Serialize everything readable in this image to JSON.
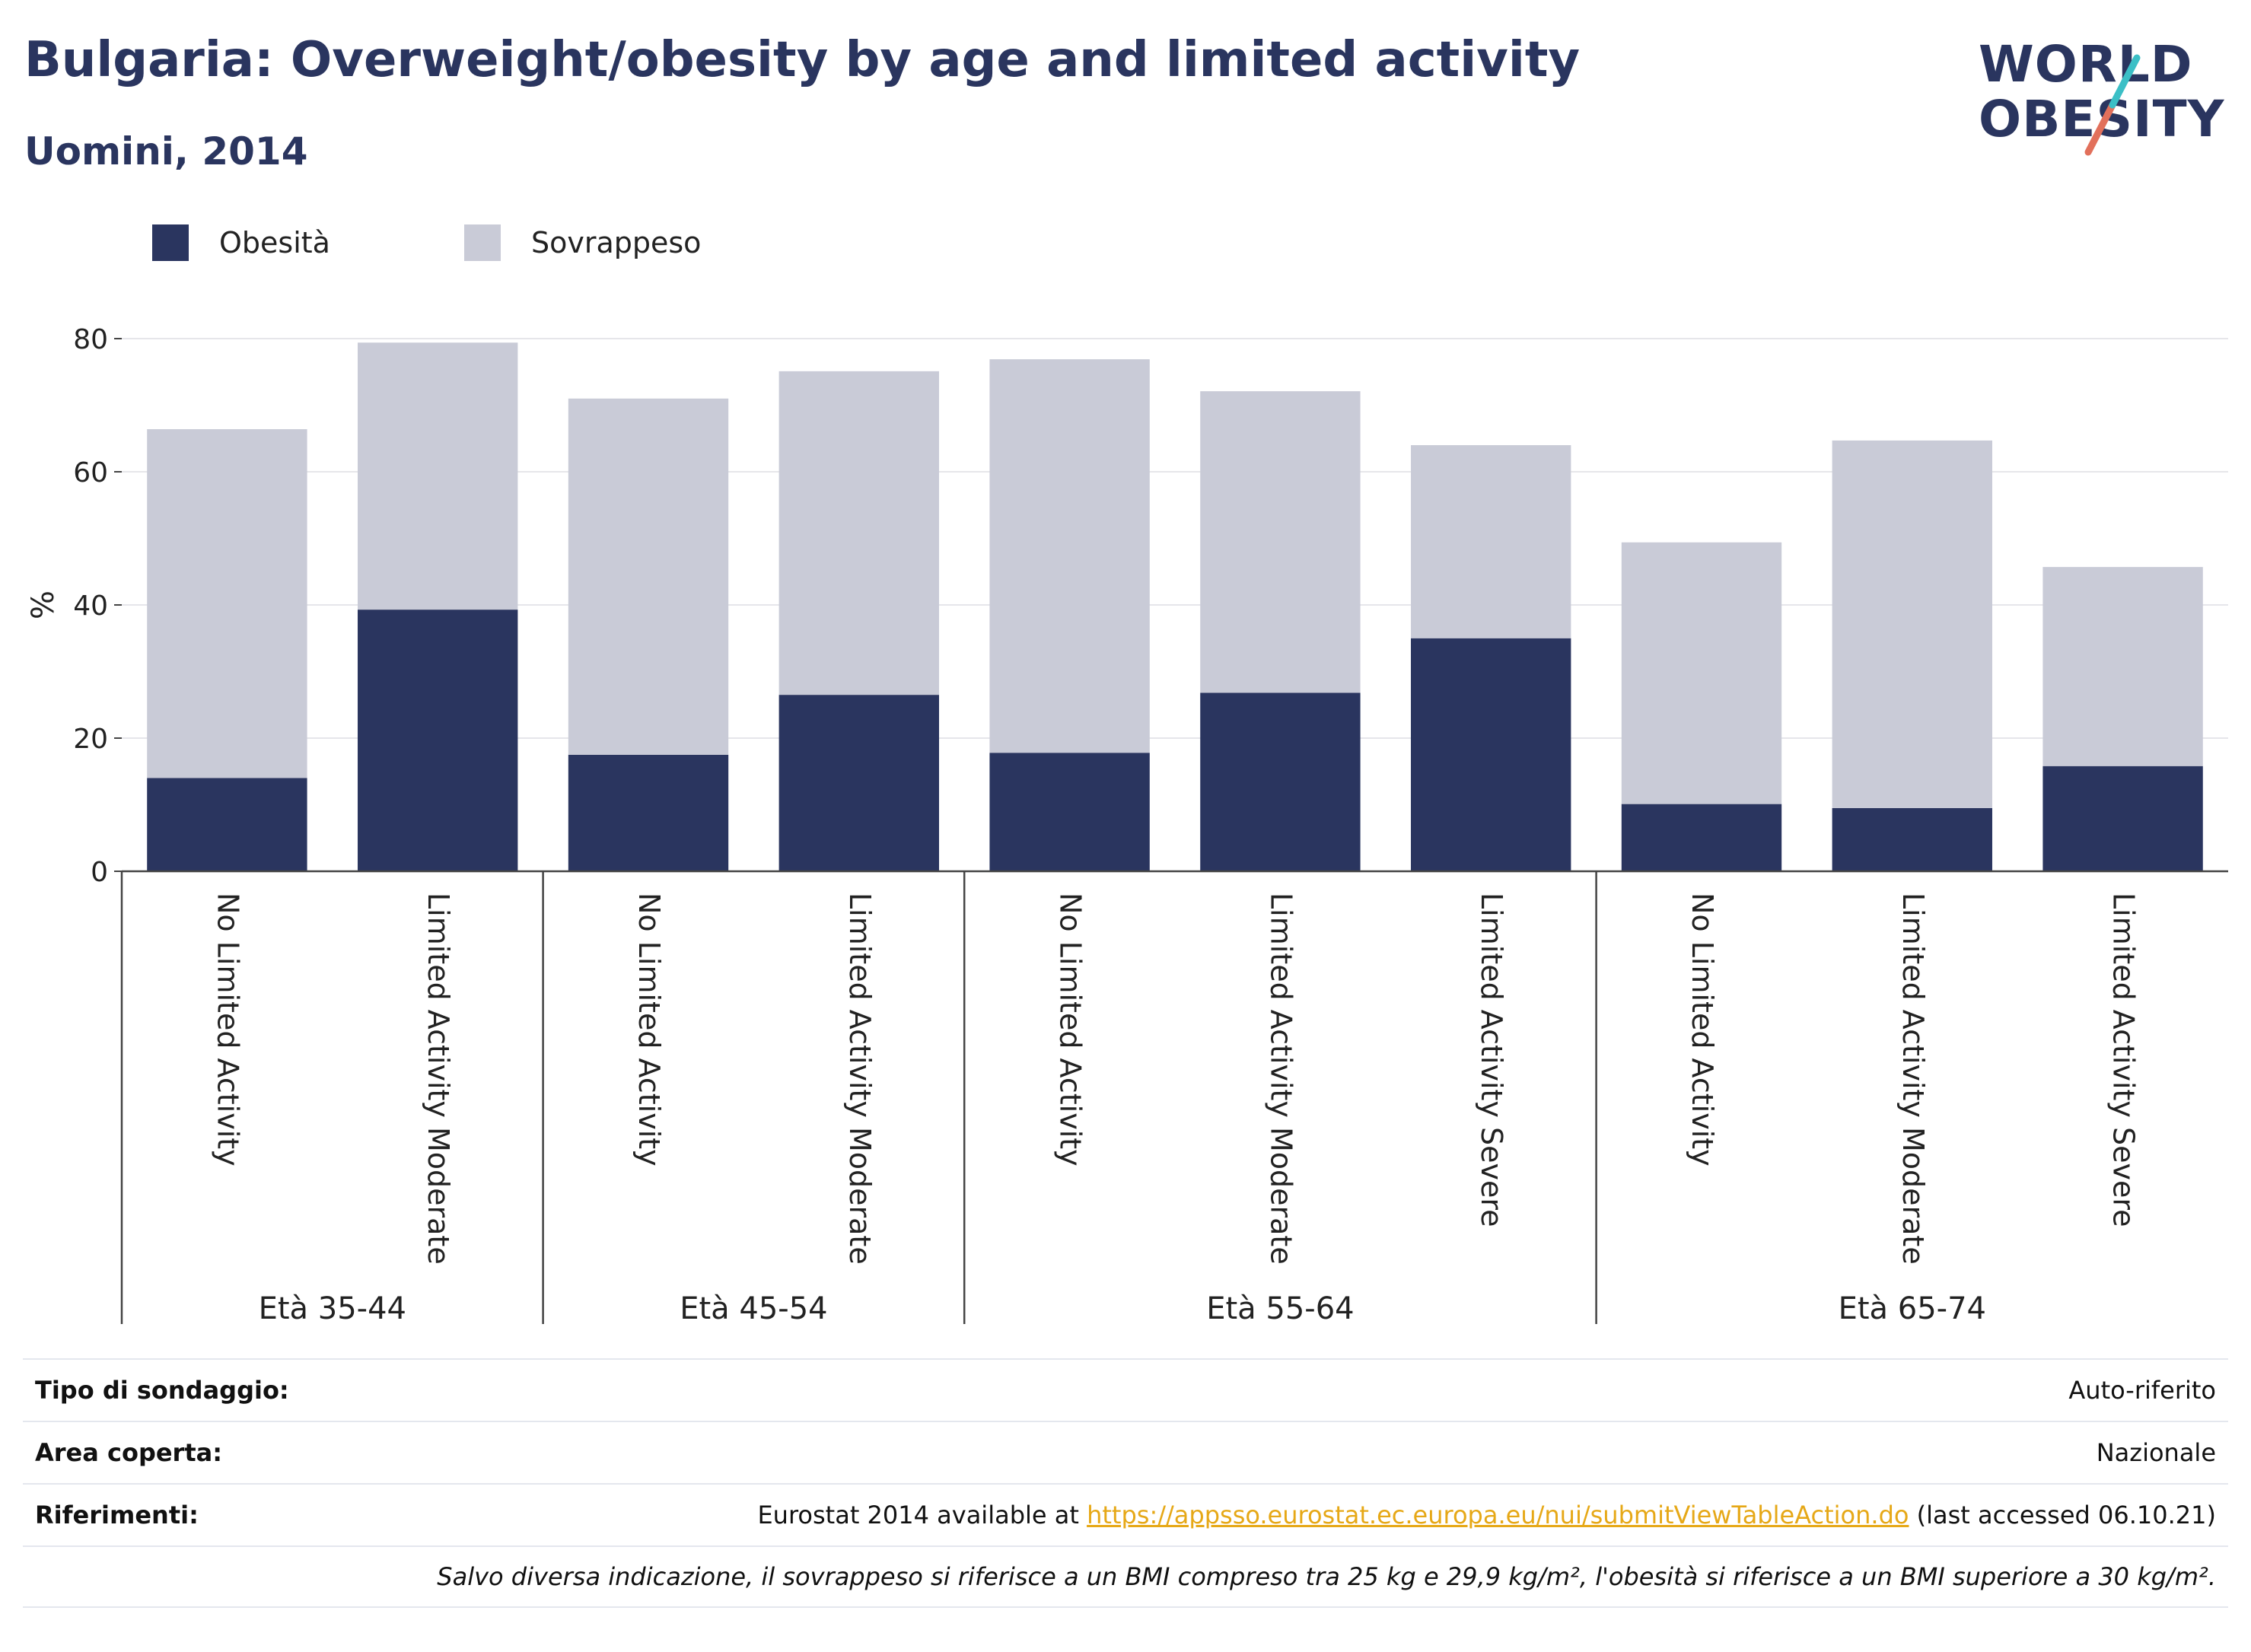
{
  "header": {
    "title": "Bulgaria: Overweight/obesity by age and limited activity",
    "subtitle": "Uomini, 2014"
  },
  "logo": {
    "line1": "WORLD",
    "line2": "OBESITY",
    "slash_colors": [
      "#3bbfc6",
      "#e2705b"
    ]
  },
  "legend": {
    "items": [
      {
        "label": "Obesità",
        "color": "#2a355f"
      },
      {
        "label": "Sovrappeso",
        "color": "#c9cbd7"
      }
    ]
  },
  "chart_data": {
    "type": "bar",
    "stacked": true,
    "ylabel": "%",
    "ylim": [
      0,
      80
    ],
    "yticks": [
      0,
      20,
      40,
      60,
      80
    ],
    "grid": true,
    "legend_position": "top-left",
    "categories": [
      "No Limited Activity",
      "Limited Activity Moderate",
      "No Limited Activity",
      "Limited Activity Moderate",
      "No Limited Activity",
      "Limited Activity Moderate",
      "Limited Activity Severe",
      "No Limited Activity",
      "Limited Activity Moderate",
      "Limited Activity Severe"
    ],
    "groups": [
      {
        "label": "Età 35-44",
        "count": 2
      },
      {
        "label": "Età 45-54",
        "count": 2
      },
      {
        "label": "Età 55-64",
        "count": 3
      },
      {
        "label": "Età 65-74",
        "count": 3
      }
    ],
    "series": [
      {
        "name": "Obesità",
        "color": "#2a355f",
        "values": [
          14.0,
          39.3,
          17.5,
          26.5,
          17.8,
          26.8,
          35.0,
          10.1,
          9.5,
          15.8
        ]
      },
      {
        "name": "Sovrappeso",
        "color": "#c9cbd7",
        "values": [
          52.4,
          40.1,
          53.5,
          48.6,
          59.1,
          45.3,
          29.0,
          39.3,
          55.2,
          29.9
        ]
      }
    ]
  },
  "footer": {
    "survey_type_label": "Tipo di sondaggio:",
    "survey_type_value": "Auto-riferito",
    "area_label": "Area coperta:",
    "area_value": "Nazionale",
    "refs_label": "Riferimenti:",
    "refs_prefix": "Eurostat 2014 available at ",
    "refs_link": "https://appsso.eurostat.ec.europa.eu/nui/submitViewTableAction.do",
    "refs_suffix": " (last accessed 06.10.21)",
    "note": "Salvo diversa indicazione, il sovrappeso si riferisce a un BMI compreso tra 25 kg e 29,9 kg/m², l'obesità si riferisce a un BMI superiore a 30 kg/m²."
  }
}
